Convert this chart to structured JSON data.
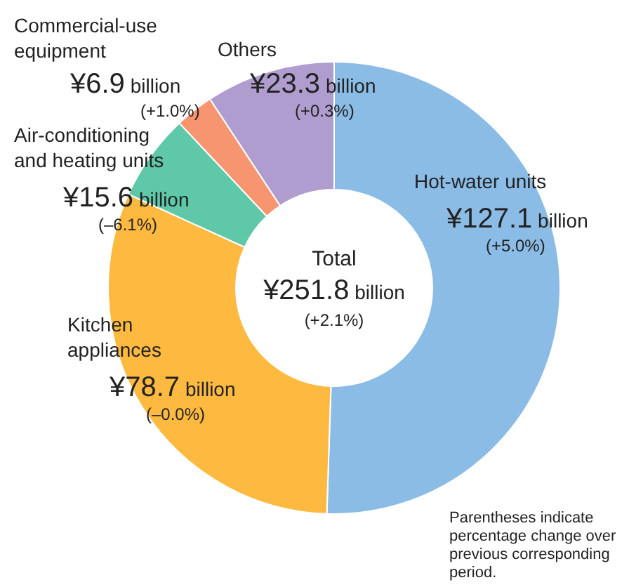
{
  "chart_data": {
    "type": "donut",
    "categories": [
      "Hot-water units",
      "Kitchen appliances",
      "Air-conditioning and heating units",
      "Commercial-use equipment",
      "Others"
    ],
    "values": [
      127.1,
      78.7,
      15.6,
      6.9,
      23.3
    ],
    "colors": [
      "#8bbce6",
      "#fdb940",
      "#5ec8a8",
      "#f6956f",
      "#b09dd0"
    ],
    "value_labels": [
      "¥127.1 billion",
      "¥78.7 billion",
      "¥15.6 billion",
      "¥6.9 billion",
      "¥23.3 billion"
    ],
    "annotations": [
      "Total\n¥251.8 billion\n(+2.1%)",
      "Parentheses indicate percentage change over previous corresponding period.",
      "(+5.0%)",
      "(–0.0%)",
      "(–6.1%)",
      "(+1.0%)",
      "(+0.3%)"
    ]
  }
}
